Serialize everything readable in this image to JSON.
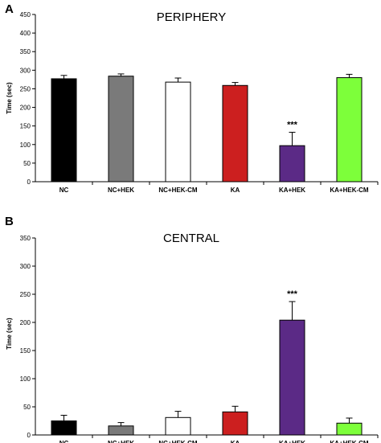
{
  "chart_data": [
    {
      "type": "bar",
      "panel": "A",
      "title": "PERIPHERY",
      "ylabel": "Time (sec)",
      "xlabel": "",
      "ylim": [
        0,
        450
      ],
      "yticks": [
        0,
        50,
        100,
        150,
        200,
        250,
        300,
        350,
        400,
        450
      ],
      "grid": false,
      "categories": [
        "NC",
        "NC+HEK",
        "NC+HEK-CM",
        "KA",
        "KA+HEK",
        "KA+HEK-CM"
      ],
      "values": [
        277,
        284,
        268,
        259,
        97,
        280
      ],
      "errors": [
        9,
        6,
        11,
        8,
        36,
        9
      ],
      "colors": [
        "#000000",
        "#7a7a7a",
        "#ffffff",
        "#cc1f1f",
        "#5b2a86",
        "#7dff3a"
      ],
      "annotations": [
        {
          "category": "KA+HEK",
          "text": "***"
        }
      ]
    },
    {
      "type": "bar",
      "panel": "B",
      "title": "CENTRAL",
      "ylabel": "Time (sec)",
      "xlabel": "",
      "ylim": [
        0,
        350
      ],
      "yticks": [
        0,
        50,
        100,
        150,
        200,
        250,
        300,
        350
      ],
      "grid": false,
      "categories": [
        "NC",
        "NC+HEK",
        "NC+HEK-CM",
        "KA",
        "KA+HEK",
        "KA+HEK-CM"
      ],
      "values": [
        25,
        16,
        31,
        41,
        204,
        21
      ],
      "errors": [
        10,
        6,
        11,
        10,
        33,
        9
      ],
      "colors": [
        "#000000",
        "#7a7a7a",
        "#ffffff",
        "#cc1f1f",
        "#5b2a86",
        "#7dff3a"
      ],
      "annotations": [
        {
          "category": "KA+HEK",
          "text": "***"
        }
      ]
    }
  ]
}
